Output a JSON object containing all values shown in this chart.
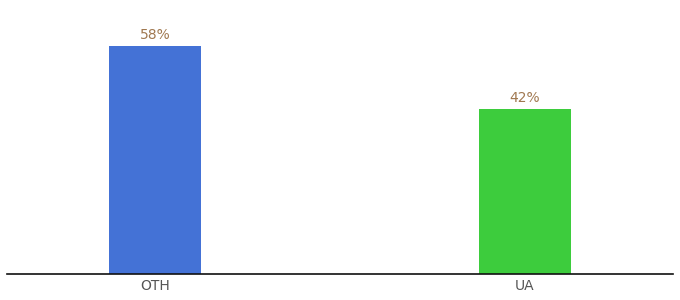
{
  "categories": [
    "OTH",
    "UA"
  ],
  "values": [
    58,
    42
  ],
  "bar_colors": [
    "#4472d6",
    "#3dcc3d"
  ],
  "label_color": "#a07850",
  "value_labels": [
    "58%",
    "42%"
  ],
  "background_color": "#ffffff",
  "ylim": [
    0,
    68
  ],
  "bar_width": 0.25,
  "label_fontsize": 10,
  "tick_fontsize": 10,
  "spine_color": "#111111"
}
